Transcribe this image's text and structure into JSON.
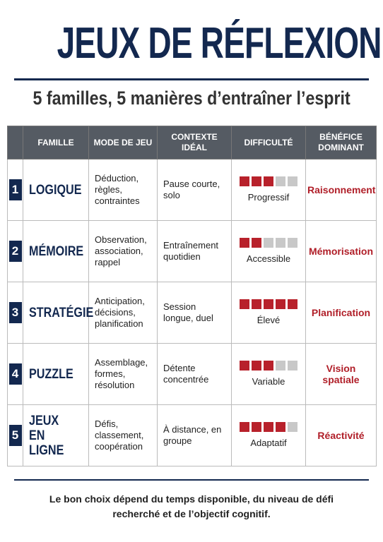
{
  "header": {
    "title": "JEUX DE RÉFLEXION",
    "subtitle": "5 familles, 5 manières d’entraîner l’esprit"
  },
  "table": {
    "columns": [
      "FAMILLE",
      "MODE DE JEU",
      "CONTEXTE IDÉAL",
      "DIFFICULTÉ",
      "BÉNÉFICE DOMINANT"
    ],
    "difficulty_scale": 5,
    "rows": [
      {
        "number": "1",
        "family": "LOGIQUE",
        "mode": "Déduction, règles, contraintes",
        "context": "Pause courte, solo",
        "difficulty": 3,
        "difficulty_label": "Progressif",
        "benefit": "Raisonnement"
      },
      {
        "number": "2",
        "family": "MÉMOIRE",
        "mode": "Observation, association, rappel",
        "context": "Entraînement quotidien",
        "difficulty": 2,
        "difficulty_label": "Accessible",
        "benefit": "Mémorisation"
      },
      {
        "number": "3",
        "family": "STRATÉGIE",
        "mode": "Anticipation, décisions, planification",
        "context": "Session longue, duel",
        "difficulty": 5,
        "difficulty_label": "Élevé",
        "benefit": "Planification"
      },
      {
        "number": "4",
        "family": "PUZZLE",
        "mode": "Assemblage, formes, résolution",
        "context": "Détente concentrée",
        "difficulty": 3,
        "difficulty_label": "Variable",
        "benefit": "Vision spatiale"
      },
      {
        "number": "5",
        "family": "JEUX EN LIGNE",
        "mode": "Défis, classement, coopération",
        "context": "À distance, en groupe",
        "difficulty": 4,
        "difficulty_label": "Adaptatif",
        "benefit": "Réactivité"
      }
    ]
  },
  "footer": {
    "text": "Le bon choix dépend du temps disponible, du niveau de défi recherché et de l’objectif cognitif."
  }
}
